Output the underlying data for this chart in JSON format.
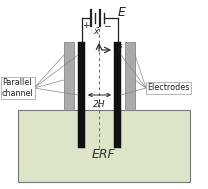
{
  "fig_width": 2.08,
  "fig_height": 1.89,
  "dpi": 100,
  "bg_color": "#ffffff",
  "erf_color": "#dde5c8",
  "erf_border": "#888888",
  "electrode_color": "#111111",
  "wire_color": "#222222",
  "outer_wall_color": "#888888",
  "outer_wall_face": "#aaaaaa",
  "arrow_color": "#222222",
  "dashed_color": "#666666",
  "label_E": "E",
  "label_2H": "2H",
  "label_erf": "ERF",
  "label_electrodes": "Electrodes",
  "label_parallel": "Parallel\nchannel",
  "plus_sign": "+",
  "minus_sign": "−"
}
